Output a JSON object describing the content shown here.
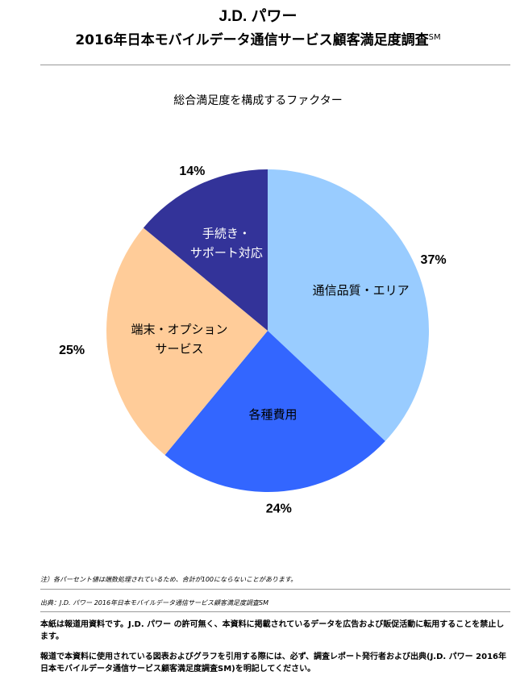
{
  "header": {
    "line1": "J.D. パワー",
    "line2": "2016年日本モバイルデータ通信サービス顧客満足度調査",
    "line2_sup": "SM"
  },
  "chart_data": {
    "type": "pie",
    "title": "総合満足度を構成するファクター",
    "slices": [
      {
        "label": "通信品質・エリア",
        "value": 37,
        "pct_label": "37%",
        "color": "#99ccff"
      },
      {
        "label": "各種費用",
        "value": 24,
        "pct_label": "24%",
        "color": "#3366ff"
      },
      {
        "label": "端末・オプションサービス",
        "label_lines": [
          "端末・オプション",
          "サービス"
        ],
        "value": 25,
        "pct_label": "25%",
        "color": "#ffcc99"
      },
      {
        "label": "手続き・サポート対応",
        "label_lines": [
          "手続き・",
          "サポート対応"
        ],
        "value": 14,
        "pct_label": "14%",
        "color": "#333399"
      }
    ]
  },
  "notes": {
    "note1": "注）各パーセント値は端数処理されているため、合計が100にならないことがあります。",
    "note2": "出典：J.D. パワー 2016年日本モバイルデータ通信サービス顧客満足度調査SM"
  },
  "disclaimer": {
    "p1": "本紙は報道用資料です。J.D. パワー の許可無く、本資料に掲載されているデータを広告および販促活動に転用することを禁止します。",
    "p2": "報道で本資料に使用されている図表およびグラフを引用する際には、必ず、調査レポート発行者および出典(J.D. パワー 2016年日本モバイルデータ通信サービス顧客満足度調査SM)を明記してください。"
  }
}
